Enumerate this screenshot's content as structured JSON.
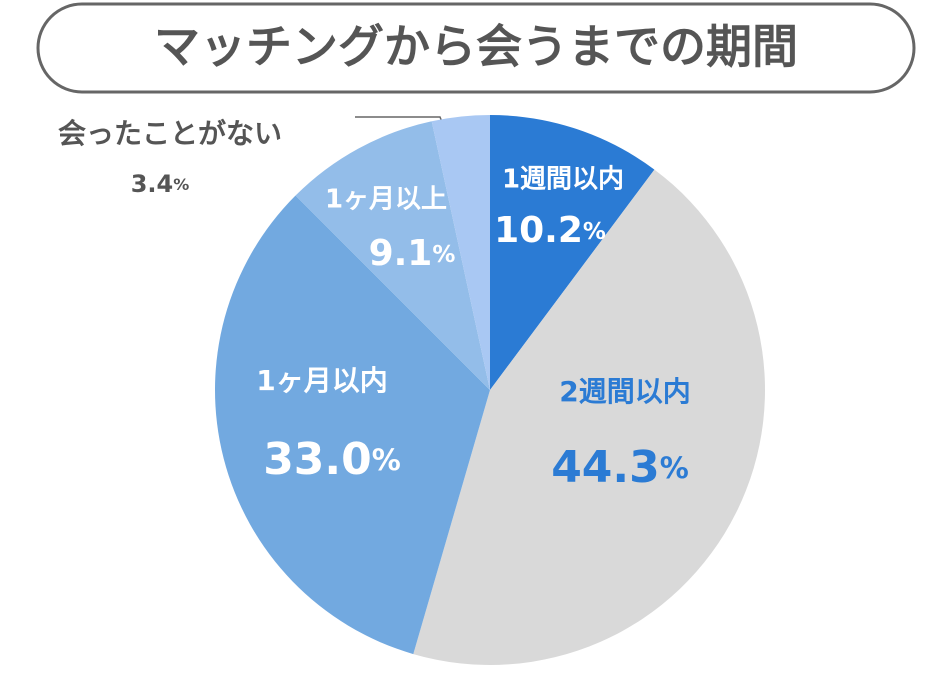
{
  "chart_data": {
    "type": "pie",
    "title": "マッチングから会うまでの期間",
    "categories": [
      "1週間以内",
      "2週間以内",
      "1ヶ月以内",
      "1ヶ月以上",
      "会ったことがない"
    ],
    "values": [
      10.2,
      44.3,
      33.0,
      9.1,
      3.4
    ],
    "value_labels": [
      "10.2%",
      "44.3%",
      "33.0%",
      "9.1%",
      "3.4%"
    ],
    "colors": [
      "#2b7bd4",
      "#d9d9d9",
      "#72a9e0",
      "#93bde9",
      "#a9c8f3"
    ]
  }
}
